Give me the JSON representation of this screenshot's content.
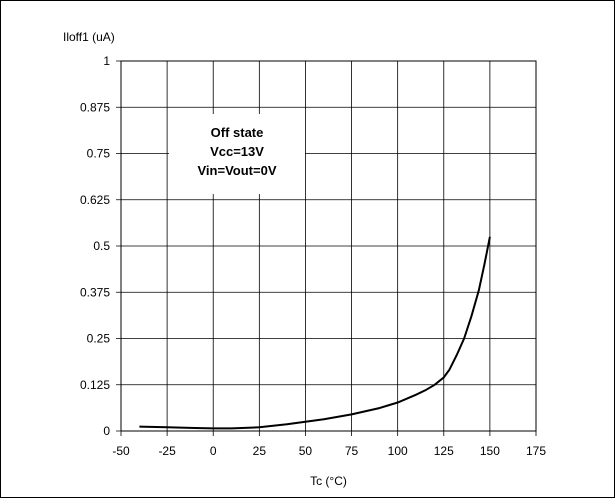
{
  "chart_data": {
    "type": "line",
    "title": "",
    "ylabel": "Iloff1 (uA)",
    "xlabel": "Tc (°C)",
    "xlim": [
      -50,
      175
    ],
    "ylim": [
      0,
      1
    ],
    "x_ticks": [
      "-50",
      "-25",
      "0",
      "25",
      "50",
      "75",
      "100",
      "125",
      "150",
      "175"
    ],
    "y_ticks": [
      "0",
      "0.125",
      "0.25",
      "0.375",
      "0.5",
      "0.625",
      "0.75",
      "0.875",
      "1"
    ],
    "grid": true,
    "annotation": [
      "Off state",
      "Vcc=13V",
      "Vin=Vout=0V"
    ],
    "series": [
      {
        "x": [
          -40,
          -25,
          -10,
          0,
          10,
          25,
          40,
          50,
          60,
          75,
          90,
          100,
          110,
          115,
          120,
          125,
          128,
          132,
          136,
          140,
          144,
          147,
          150
        ],
        "y": [
          0.012,
          0.01,
          0.008,
          0.007,
          0.007,
          0.01,
          0.018,
          0.025,
          0.032,
          0.045,
          0.062,
          0.077,
          0.098,
          0.11,
          0.125,
          0.145,
          0.165,
          0.205,
          0.25,
          0.31,
          0.38,
          0.45,
          0.525
        ]
      }
    ]
  }
}
